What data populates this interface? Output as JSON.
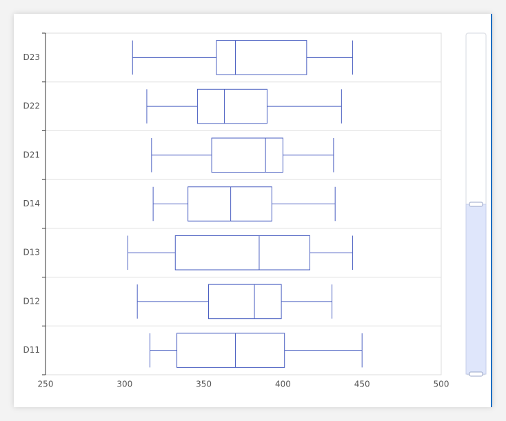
{
  "chart_data": {
    "type": "boxplot",
    "categories": [
      "D11",
      "D12",
      "D13",
      "D14",
      "D21",
      "D22",
      "D23"
    ],
    "boxes": [
      [
        316,
        333,
        370,
        401,
        450
      ],
      [
        308,
        353,
        382,
        399,
        431
      ],
      [
        302,
        332,
        385,
        417,
        444
      ],
      [
        318,
        340,
        367,
        393,
        433
      ],
      [
        317,
        355,
        389,
        400,
        432
      ],
      [
        314,
        346,
        363,
        390,
        437
      ],
      [
        305,
        358,
        370,
        415,
        444
      ]
    ],
    "color": "#4a5fc1",
    "xlim": [
      250,
      500
    ],
    "xticks": [
      250,
      300,
      350,
      400,
      450,
      500
    ],
    "grid": true
  }
}
